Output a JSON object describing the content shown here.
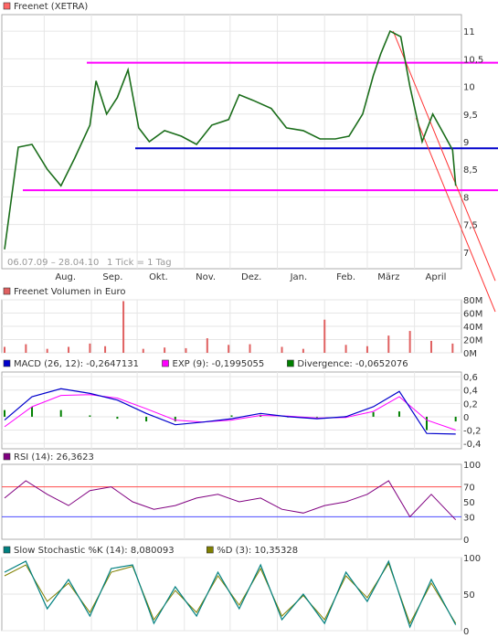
{
  "chart_data": [
    {
      "type": "line",
      "id": "price",
      "title": "Freenet (XETRA)",
      "date_range": "06.07.09 – 28.04.10",
      "tick_note": "1 Tick = 1 Tag",
      "x_ticks": [
        "Aug.",
        "Sep.",
        "Okt.",
        "Nov.",
        "Dez.",
        "Jan.",
        "Feb.",
        "März",
        "April"
      ],
      "y_ticks": [
        "7",
        "7,5",
        "8",
        "8,5",
        "9",
        "9,5",
        "10",
        "10,5",
        "11"
      ],
      "ylim": [
        6.7,
        11.3
      ],
      "x": [
        "2009-07-06",
        "2009-07-15",
        "2009-07-24",
        "2009-08-03",
        "2009-08-12",
        "2009-08-21",
        "2009-08-31",
        "2009-09-04",
        "2009-09-11",
        "2009-09-18",
        "2009-09-25",
        "2009-10-02",
        "2009-10-09",
        "2009-10-19",
        "2009-10-30",
        "2009-11-09",
        "2009-11-19",
        "2009-11-30",
        "2009-12-07",
        "2009-12-16",
        "2009-12-28",
        "2010-01-07",
        "2010-01-18",
        "2010-01-29",
        "2010-02-08",
        "2010-02-17",
        "2010-02-26",
        "2010-03-05",
        "2010-03-10",
        "2010-03-16",
        "2010-03-23",
        "2010-03-29",
        "2010-04-06",
        "2010-04-13",
        "2010-04-20",
        "2010-04-26",
        "2010-04-28"
      ],
      "close": [
        7.05,
        8.9,
        8.95,
        8.5,
        8.2,
        8.7,
        9.3,
        10.1,
        9.5,
        9.8,
        10.3,
        9.25,
        9.0,
        9.2,
        9.1,
        8.95,
        9.3,
        9.4,
        9.85,
        9.75,
        9.6,
        9.25,
        9.2,
        9.05,
        9.05,
        9.1,
        9.5,
        10.2,
        10.6,
        11.0,
        10.9,
        10.0,
        9.0,
        9.5,
        9.15,
        8.85,
        8.2
      ],
      "support_lines": [
        {
          "color": "#ff00ff",
          "value": 10.43
        },
        {
          "color": "#0000cc",
          "value": 8.88
        },
        {
          "color": "#ff00ff",
          "value": 8.12
        }
      ],
      "trend_channel": {
        "color": "#ff3333",
        "start": [
          "2010-03-18",
          11.0
        ],
        "end": [
          "2010-04-30",
          8.1
        ]
      }
    },
    {
      "type": "bar",
      "id": "volume",
      "title": "Freenet Volumen in Euro",
      "y_ticks": [
        "0M",
        "20M",
        "40M",
        "60M",
        "80M"
      ],
      "ylim": [
        0,
        80
      ],
      "x": [
        "2009-07-06",
        "2009-07-20",
        "2009-08-03",
        "2009-08-17",
        "2009-08-31",
        "2009-09-10",
        "2009-09-22",
        "2009-10-05",
        "2009-10-19",
        "2009-11-02",
        "2009-11-16",
        "2009-11-30",
        "2009-12-14",
        "2010-01-04",
        "2010-01-18",
        "2010-02-01",
        "2010-02-15",
        "2010-03-01",
        "2010-03-15",
        "2010-03-29",
        "2010-04-12",
        "2010-04-26"
      ],
      "values": [
        9,
        13,
        6,
        9,
        14,
        10,
        78,
        6,
        8,
        7,
        22,
        12,
        13,
        9,
        6,
        50,
        12,
        10,
        26,
        33,
        18,
        14
      ],
      "color": "#e06060"
    },
    {
      "type": "line",
      "id": "macd",
      "legend": [
        {
          "label": "MACD (26, 12): -0,2647131",
          "color": "#0000cc"
        },
        {
          "label": "EXP (9): -0,1995055",
          "color": "#ff00ff"
        },
        {
          "label": "Divergence: -0,0652076",
          "color": "#008000"
        }
      ],
      "y_ticks": [
        "-0,4",
        "-0,2",
        "0",
        "0,2",
        "0,4",
        "0,6"
      ],
      "ylim": [
        -0.48,
        0.67
      ],
      "x": [
        "2009-07-06",
        "2009-07-24",
        "2009-08-12",
        "2009-08-31",
        "2009-09-18",
        "2009-10-07",
        "2009-10-26",
        "2009-11-13",
        "2009-12-02",
        "2009-12-21",
        "2010-01-08",
        "2010-01-27",
        "2010-02-15",
        "2010-03-05",
        "2010-03-22",
        "2010-04-09",
        "2010-04-28"
      ],
      "macd": [
        -0.05,
        0.3,
        0.42,
        0.35,
        0.25,
        0.05,
        -0.12,
        -0.08,
        -0.03,
        0.05,
        0.0,
        -0.03,
        0.0,
        0.15,
        0.38,
        -0.25,
        -0.26
      ],
      "signal": [
        -0.15,
        0.15,
        0.32,
        0.33,
        0.28,
        0.12,
        -0.05,
        -0.08,
        -0.05,
        0.02,
        0.01,
        -0.02,
        -0.01,
        0.08,
        0.3,
        -0.05,
        -0.2
      ],
      "divergence": [
        0.1,
        0.15,
        0.1,
        0.02,
        -0.03,
        -0.07,
        -0.07,
        0.0,
        0.02,
        0.03,
        -0.01,
        -0.01,
        0.01,
        0.07,
        0.08,
        -0.2,
        -0.07
      ]
    },
    {
      "type": "line",
      "id": "rsi",
      "legend": [
        {
          "label": "RSI (14): 26,3623",
          "color": "#800080"
        }
      ],
      "y_ticks": [
        "0",
        "30",
        "50",
        "70",
        "100"
      ],
      "ylim": [
        0,
        100
      ],
      "reference_lines": [
        {
          "value": 70,
          "color": "#ff4d4d"
        },
        {
          "value": 30,
          "color": "#4d4dff"
        }
      ],
      "x": [
        "2009-07-06",
        "2009-07-20",
        "2009-08-03",
        "2009-08-17",
        "2009-08-31",
        "2009-09-14",
        "2009-09-28",
        "2009-10-12",
        "2009-10-26",
        "2009-11-09",
        "2009-11-23",
        "2009-12-07",
        "2009-12-21",
        "2010-01-04",
        "2010-01-18",
        "2010-02-01",
        "2010-02-15",
        "2010-03-01",
        "2010-03-15",
        "2010-03-29",
        "2010-04-12",
        "2010-04-28"
      ],
      "values": [
        55,
        78,
        60,
        45,
        65,
        70,
        50,
        40,
        45,
        55,
        60,
        50,
        55,
        40,
        35,
        45,
        50,
        60,
        78,
        30,
        60,
        26
      ]
    },
    {
      "type": "line",
      "id": "stochastic",
      "legend": [
        {
          "label": "Slow Stochastic %K (14): 8,080093",
          "color": "#008080"
        },
        {
          "label": "%D (3): 10,35328",
          "color": "#808000"
        }
      ],
      "y_ticks": [
        "0",
        "50",
        "100"
      ],
      "ylim": [
        0,
        100
      ],
      "x": [
        "2009-07-06",
        "2009-07-20",
        "2009-08-03",
        "2009-08-17",
        "2009-08-31",
        "2009-09-14",
        "2009-09-28",
        "2009-10-12",
        "2009-10-26",
        "2009-11-09",
        "2009-11-23",
        "2009-12-07",
        "2009-12-21",
        "2010-01-04",
        "2010-01-18",
        "2010-02-01",
        "2010-02-15",
        "2010-03-01",
        "2010-03-15",
        "2010-03-29",
        "2010-04-12",
        "2010-04-28"
      ],
      "k": [
        80,
        95,
        30,
        70,
        20,
        85,
        90,
        10,
        60,
        20,
        80,
        30,
        90,
        15,
        50,
        10,
        80,
        40,
        95,
        5,
        70,
        8
      ],
      "d": [
        75,
        90,
        40,
        65,
        25,
        80,
        88,
        15,
        55,
        25,
        75,
        35,
        85,
        20,
        48,
        15,
        75,
        45,
        92,
        10,
        65,
        10
      ]
    }
  ]
}
